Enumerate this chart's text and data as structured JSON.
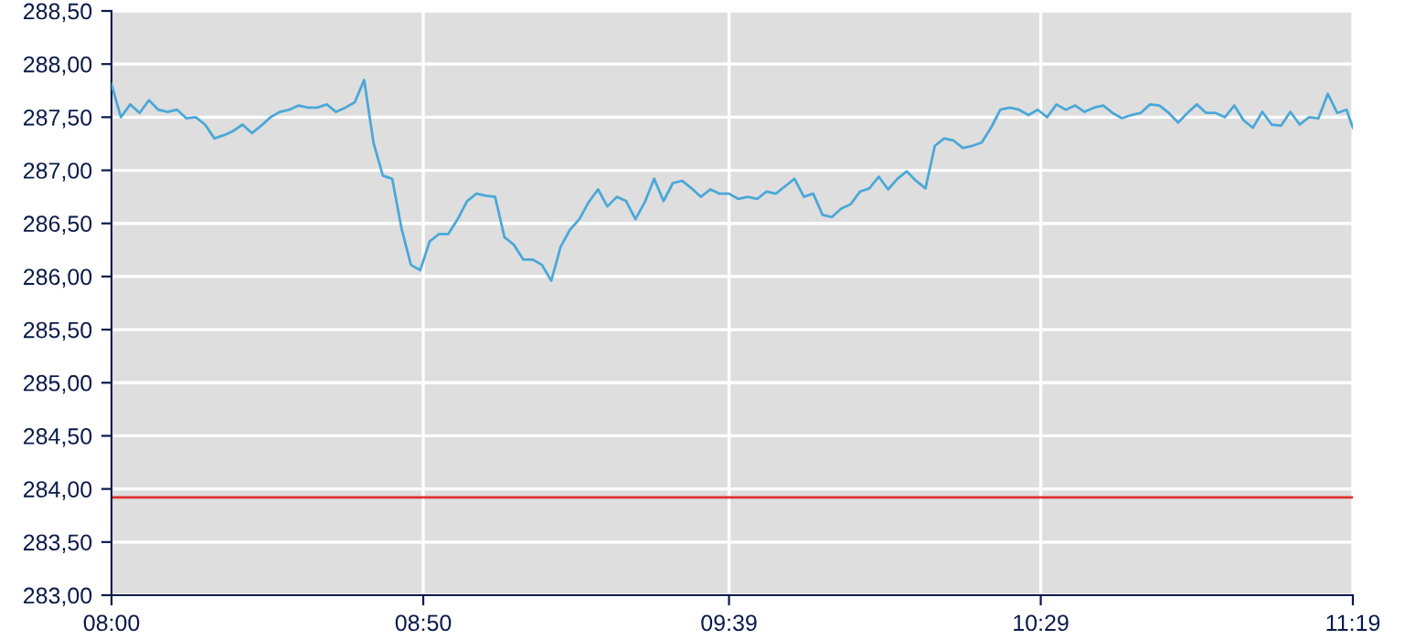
{
  "chart_data": {
    "type": "line",
    "x": [
      8.0,
      8.025,
      8.05,
      8.075,
      8.1,
      8.125,
      8.15,
      8.175,
      8.2,
      8.225,
      8.25,
      8.275,
      8.3,
      8.325,
      8.35,
      8.375,
      8.4,
      8.425,
      8.45,
      8.475,
      8.5,
      8.525,
      8.55,
      8.575,
      8.6,
      8.625,
      8.65,
      8.675,
      8.7,
      8.725,
      8.75,
      8.775,
      8.8,
      8.825,
      8.85,
      8.875,
      8.9,
      8.925,
      8.95,
      8.975,
      9.0,
      9.025,
      9.05,
      9.075,
      9.1,
      9.125,
      9.15,
      9.175,
      9.2,
      9.225,
      9.25,
      9.275,
      9.3,
      9.325,
      9.35,
      9.375,
      9.4,
      9.425,
      9.45,
      9.475,
      9.5,
      9.525,
      9.55,
      9.575,
      9.6,
      9.625,
      9.65,
      9.675,
      9.7,
      9.725,
      9.75,
      9.775,
      9.8,
      9.825,
      9.85,
      9.875,
      9.9,
      9.925,
      9.95,
      9.975,
      10.0,
      10.025,
      10.05,
      10.075,
      10.1,
      10.125,
      10.15,
      10.175,
      10.2,
      10.225,
      10.25,
      10.275,
      10.3,
      10.325,
      10.35,
      10.375,
      10.4,
      10.425,
      10.45,
      10.475,
      10.5,
      10.525,
      10.55,
      10.575,
      10.6,
      10.625,
      10.65,
      10.675,
      10.7,
      10.725,
      10.75,
      10.775,
      10.8,
      10.825,
      10.85,
      10.875,
      10.9,
      10.925,
      10.95,
      10.975,
      11.0,
      11.025,
      11.05,
      11.075,
      11.1,
      11.125,
      11.15,
      11.175,
      11.2,
      11.225,
      11.25,
      11.275,
      11.3,
      11.317
    ],
    "series": [
      {
        "color": "#4aa8d8",
        "values": [
          287.81,
          287.5,
          287.62,
          287.54,
          287.66,
          287.57,
          287.55,
          287.57,
          287.49,
          287.5,
          287.43,
          287.3,
          287.33,
          287.37,
          287.43,
          287.35,
          287.42,
          287.5,
          287.55,
          287.57,
          287.61,
          287.59,
          287.59,
          287.62,
          287.55,
          287.59,
          287.64,
          287.85,
          287.26,
          286.95,
          286.92,
          286.45,
          286.11,
          286.06,
          286.33,
          286.4,
          286.4,
          286.54,
          286.71,
          286.78,
          286.76,
          286.75,
          286.37,
          286.3,
          286.16,
          286.16,
          286.11,
          285.96,
          286.28,
          286.44,
          286.54,
          286.7,
          286.82,
          286.66,
          286.75,
          286.71,
          286.54,
          286.7,
          286.92,
          286.71,
          286.88,
          286.9,
          286.83,
          286.75,
          286.82,
          286.78,
          286.78,
          286.73,
          286.75,
          286.73,
          286.8,
          286.78,
          286.85,
          286.92,
          286.75,
          286.78,
          286.58,
          286.56,
          286.64,
          286.68,
          286.8,
          286.83,
          286.94,
          286.82,
          286.92,
          286.99,
          286.9,
          286.83,
          287.23,
          287.3,
          287.28,
          287.21,
          287.23,
          287.26,
          287.4,
          287.57,
          287.59,
          287.57,
          287.52,
          287.57,
          287.5,
          287.62,
          287.57,
          287.61,
          287.55,
          287.59,
          287.61,
          287.54,
          287.49,
          287.52,
          287.54,
          287.62,
          287.61,
          287.54,
          287.45,
          287.54,
          287.62,
          287.54,
          287.54,
          287.5,
          287.61,
          287.47,
          287.4,
          287.55,
          287.43,
          287.42,
          287.55,
          287.43,
          287.5,
          287.49,
          287.72,
          287.54,
          287.57,
          287.4
        ]
      }
    ],
    "xlim": [
      8.0,
      11.317
    ],
    "xticks": [
      {
        "value": 8.0,
        "label": "08:00"
      },
      {
        "value": 8.833,
        "label": "08:50"
      },
      {
        "value": 9.65,
        "label": "09:39"
      },
      {
        "value": 10.483,
        "label": "10:29"
      },
      {
        "value": 11.317,
        "label": "11:19"
      }
    ],
    "ylim": [
      283.0,
      288.5
    ],
    "yticks": [
      {
        "value": 283.0,
        "label": "283,00"
      },
      {
        "value": 283.5,
        "label": "283,50"
      },
      {
        "value": 284.0,
        "label": "284,00"
      },
      {
        "value": 284.5,
        "label": "284,50"
      },
      {
        "value": 285.0,
        "label": "285,00"
      },
      {
        "value": 285.5,
        "label": "285,50"
      },
      {
        "value": 286.0,
        "label": "286,00"
      },
      {
        "value": 286.5,
        "label": "286,50"
      },
      {
        "value": 287.0,
        "label": "287,00"
      },
      {
        "value": 287.5,
        "label": "287,50"
      },
      {
        "value": 288.0,
        "label": "288,00"
      },
      {
        "value": 288.5,
        "label": "288,50"
      }
    ],
    "ref_lines": [
      {
        "axis": "y",
        "value": 283.92,
        "color": "#e03030"
      }
    ],
    "grid": true,
    "legend": false,
    "marker": "none",
    "line_style": "solid"
  }
}
